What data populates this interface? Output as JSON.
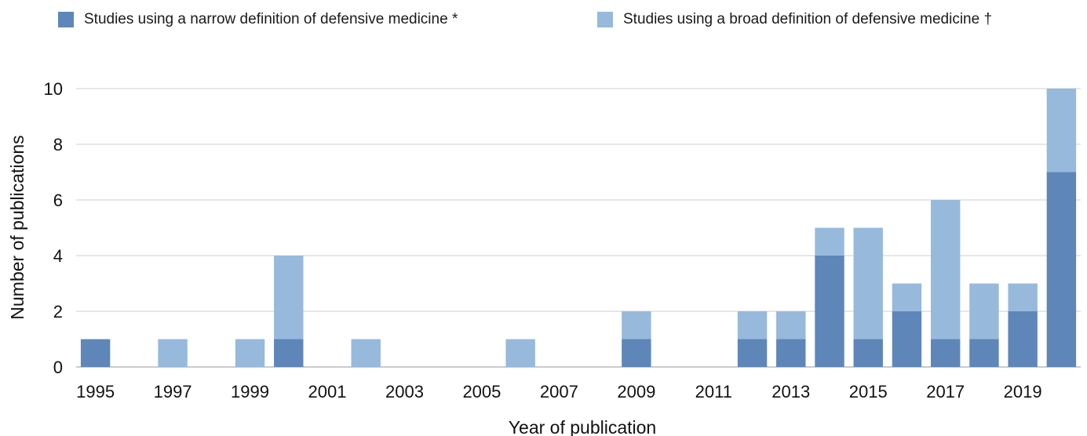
{
  "chart_data": {
    "type": "bar",
    "stacked": true,
    "title": "",
    "xlabel": "Year of publication",
    "ylabel": "Number of publications",
    "ylim": [
      0,
      10
    ],
    "yticks": [
      0,
      2,
      4,
      6,
      8,
      10
    ],
    "categories": [
      "1995",
      "1996",
      "1997",
      "1998",
      "1999",
      "2000",
      "2001",
      "2002",
      "2003",
      "2004",
      "2005",
      "2006",
      "2007",
      "2008",
      "2009",
      "2010",
      "2011",
      "2012",
      "2013",
      "2014",
      "2015",
      "2016",
      "2017",
      "2018",
      "2019",
      "2020"
    ],
    "xtick_labels": [
      "1995",
      "1997",
      "1999",
      "2001",
      "2003",
      "2005",
      "2007",
      "2009",
      "2011",
      "2013",
      "2015",
      "2017",
      "2019"
    ],
    "grid": true,
    "legend_position": "top",
    "series": [
      {
        "name": "Studies using a narrow definition of defensive medicine *",
        "color": "#5f86b9",
        "values": [
          1,
          0,
          0,
          0,
          0,
          1,
          0,
          0,
          0,
          0,
          0,
          0,
          0,
          0,
          1,
          0,
          0,
          1,
          1,
          4,
          1,
          2,
          1,
          1,
          2,
          7
        ]
      },
      {
        "name": "Studies using a broad definition of defensive medicine †",
        "color": "#97b9dc",
        "values": [
          0,
          0,
          1,
          0,
          1,
          3,
          0,
          1,
          0,
          0,
          0,
          1,
          0,
          0,
          1,
          0,
          0,
          1,
          1,
          1,
          4,
          1,
          5,
          2,
          1,
          3
        ]
      }
    ]
  }
}
